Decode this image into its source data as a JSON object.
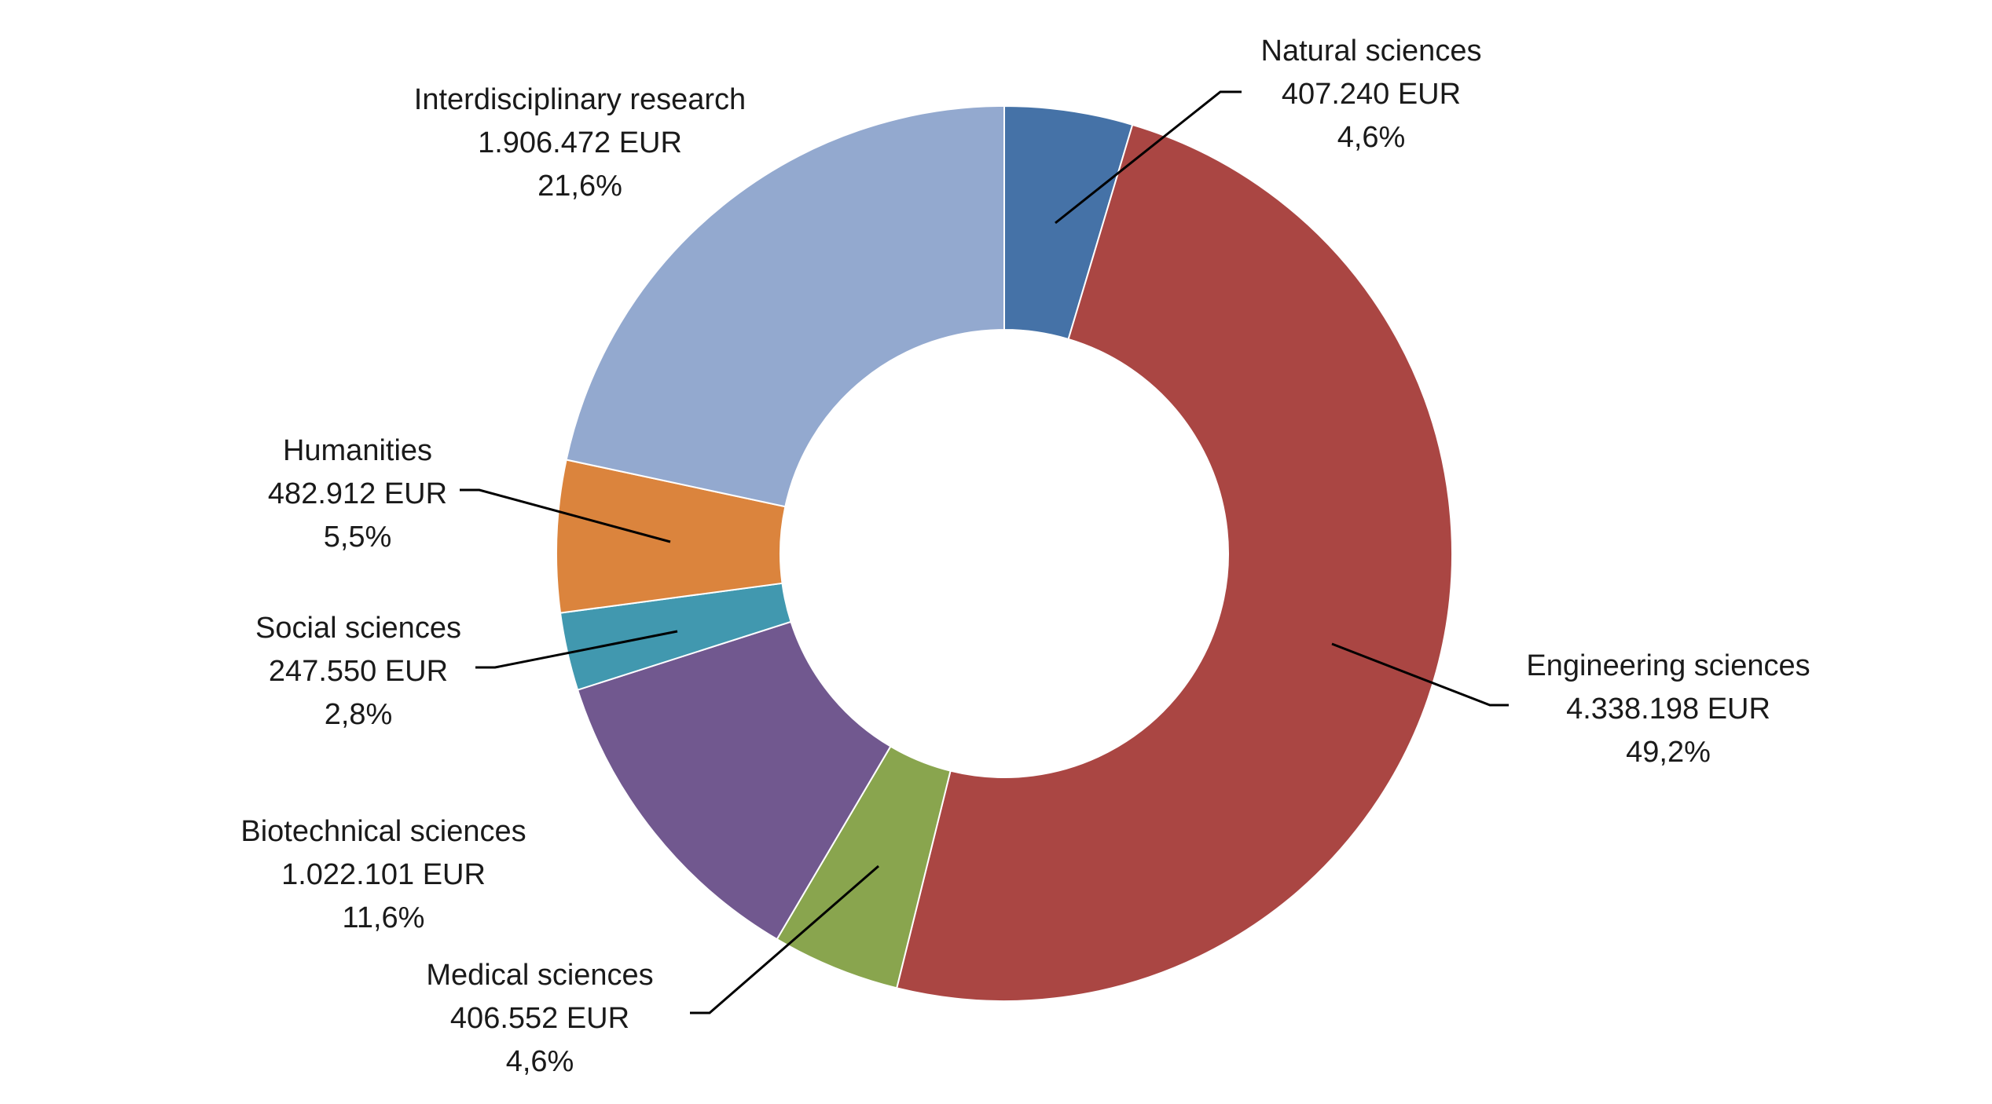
{
  "chart_data": {
    "type": "pie",
    "variant": "donut",
    "legend": "none",
    "slices": [
      {
        "name": "Natural sciences",
        "value": 407240,
        "value_label": "407.240 EUR",
        "percent": 4.6,
        "percent_label": "4,6%",
        "color": "#4572A7"
      },
      {
        "name": "Engineering sciences",
        "value": 4338198,
        "value_label": "4.338.198 EUR",
        "percent": 49.2,
        "percent_label": "49,2%",
        "color": "#AA4643"
      },
      {
        "name": "Medical sciences",
        "value": 406552,
        "value_label": "406.552 EUR",
        "percent": 4.6,
        "percent_label": "4,6%",
        "color": "#89A54E"
      },
      {
        "name": "Biotechnical sciences",
        "value": 1022101,
        "value_label": "1.022.101 EUR",
        "percent": 11.6,
        "percent_label": "11,6%",
        "color": "#71588F"
      },
      {
        "name": "Social sciences",
        "value": 247550,
        "value_label": "247.550 EUR",
        "percent": 2.8,
        "percent_label": "2,8%",
        "color": "#4198AF"
      },
      {
        "name": "Humanities",
        "value": 482912,
        "value_label": "482.912 EUR",
        "percent": 5.5,
        "percent_label": "5,5%",
        "color": "#DB843D"
      },
      {
        "name": "Interdisciplinary research",
        "value": 1906472,
        "value_label": "1.906.472 EUR",
        "percent": 21.6,
        "percent_label": "21,6%",
        "color": "#93A9CF"
      }
    ]
  }
}
